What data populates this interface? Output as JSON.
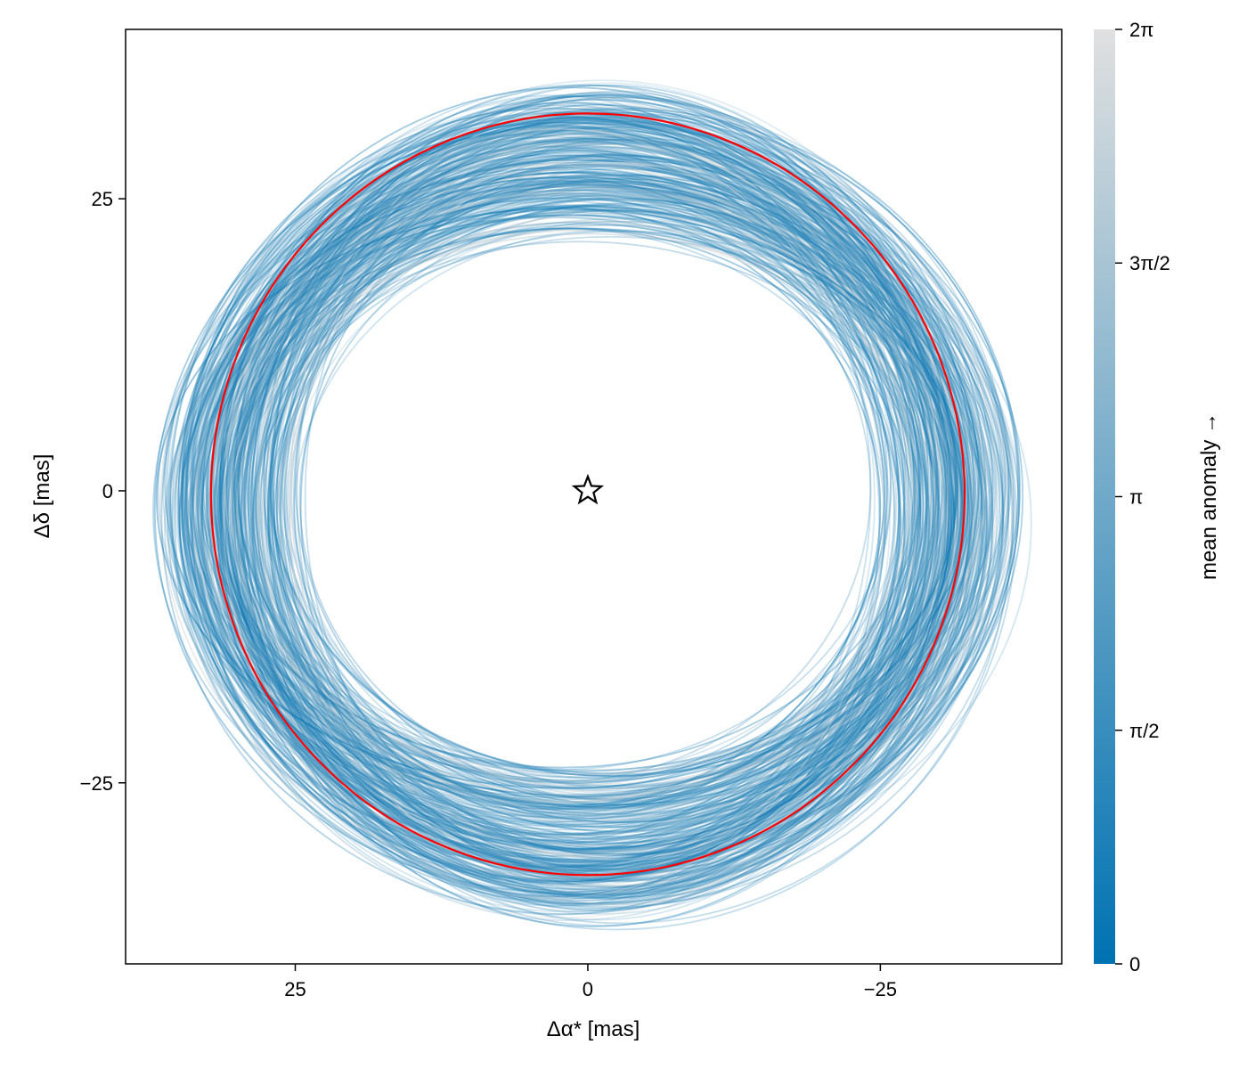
{
  "chart_data": {
    "type": "line",
    "title": "",
    "xlabel": "Δα* [mas]",
    "ylabel": "Δδ [mas]",
    "xlim": [
      39.5,
      -40.5
    ],
    "ylim": [
      -40.5,
      39.5
    ],
    "x_reversed": true,
    "xticks": [
      25,
      0,
      -25
    ],
    "xtick_labels": [
      "25",
      "0",
      "−25"
    ],
    "yticks": [
      25,
      0,
      -25
    ],
    "yticks_labels": [
      "25",
      "0",
      "−25"
    ],
    "grid": false,
    "series": [
      {
        "kind": "posterior-orbit-draws",
        "count_estimate": 300,
        "color_by": "mean anomaly",
        "color_range": [
          "#0072b2",
          "#e0e0e0"
        ],
        "semi_axis_x_range": [
          27,
          35
        ],
        "semi_axis_y_range": [
          24,
          35
        ],
        "center_x_range": [
          -3,
          3
        ],
        "center_y_range": [
          -3,
          1
        ]
      },
      {
        "kind": "best-fit-orbit",
        "color": "#ff0000",
        "center": [
          0,
          -0.3
        ],
        "semi_axis_x": 32.2,
        "semi_axis_y": 32.6
      }
    ],
    "marker": {
      "kind": "star",
      "x": 0,
      "y": 0
    },
    "colorbar": {
      "label": "mean anomaly →",
      "min": 0,
      "max": 6.283185,
      "ticks": [
        0,
        1.570796,
        3.141593,
        4.712389,
        6.283185
      ],
      "tick_labels": [
        "0",
        "π/2",
        "π",
        "3π/2",
        "2π"
      ],
      "color_low": "#0072b2",
      "color_high": "#e0e0e0"
    }
  }
}
